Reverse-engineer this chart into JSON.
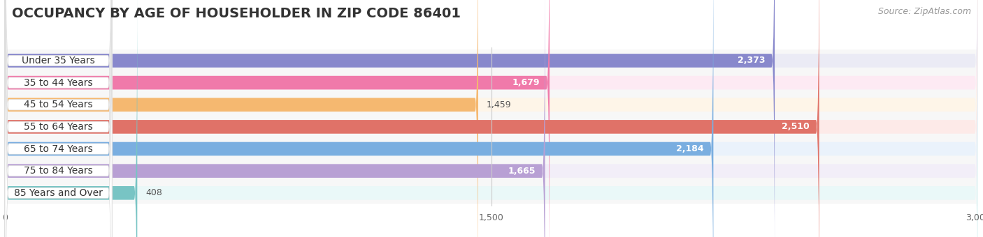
{
  "title": "OCCUPANCY BY AGE OF HOUSEHOLDER IN ZIP CODE 86401",
  "source": "Source: ZipAtlas.com",
  "categories": [
    "Under 35 Years",
    "35 to 44 Years",
    "45 to 54 Years",
    "55 to 64 Years",
    "65 to 74 Years",
    "75 to 84 Years",
    "85 Years and Over"
  ],
  "values": [
    2373,
    1679,
    1459,
    2510,
    2184,
    1665,
    408
  ],
  "bar_colors": [
    "#8888cc",
    "#f07aaa",
    "#f5b870",
    "#e07268",
    "#7aaee0",
    "#b8a0d4",
    "#78c4c4"
  ],
  "bar_bg_colors": [
    "#ebebf5",
    "#fdeaf3",
    "#fef5e8",
    "#fdeae8",
    "#eaf2fb",
    "#f2eef8",
    "#eaf8f8"
  ],
  "value_colors": [
    "#ffffff",
    "#888844",
    "#888844",
    "#ffffff",
    "#ffffff",
    "#888844",
    "#888844"
  ],
  "xlim": [
    0,
    3000
  ],
  "xticks": [
    0,
    1500,
    3000
  ],
  "background_color": "#ffffff",
  "chart_bg": "#f7f7f7",
  "title_fontsize": 14,
  "source_fontsize": 9,
  "label_fontsize": 10,
  "value_fontsize": 9
}
